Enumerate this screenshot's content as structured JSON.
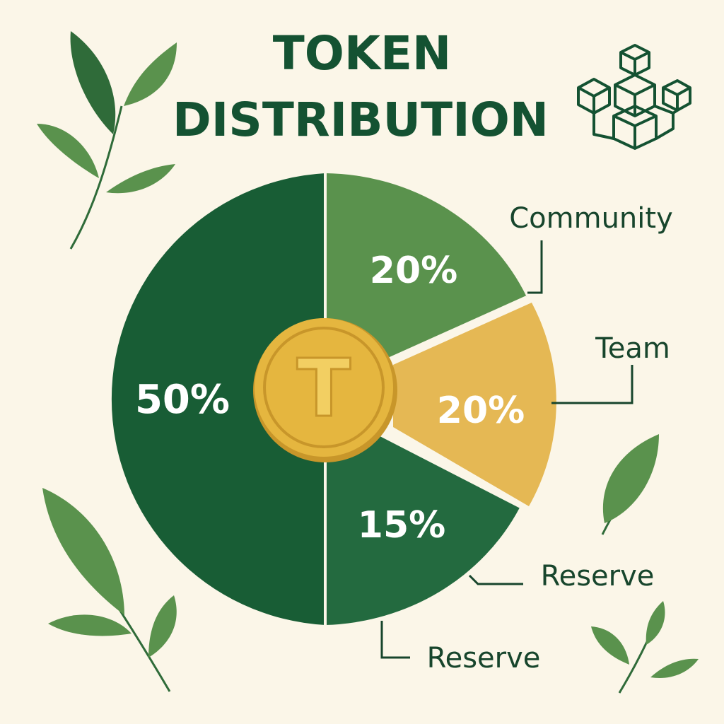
{
  "chart_data": {
    "type": "pie",
    "title": "TOKEN DISTRIBUTION",
    "center_icon_letter": "T",
    "slices": [
      {
        "value_label": "50%",
        "value": 50,
        "label": "",
        "color": "#185d35"
      },
      {
        "value_label": "20%",
        "value": 20,
        "label": "Community",
        "color": "#5a924d"
      },
      {
        "value_label": "20%",
        "value": 20,
        "label": "Team",
        "color": "#e5b854"
      },
      {
        "value_label": "15%",
        "value": 15,
        "label": "Reserve",
        "color": "#236a3f"
      }
    ],
    "extra_labels": [
      "Reserve"
    ]
  },
  "colors": {
    "background": "#fbf6e8",
    "title": "#145232",
    "leaf": "#4f8f49",
    "leaf_dark": "#2f6b39",
    "coin": "#e5b63f",
    "coin_edge": "#c8962a"
  }
}
